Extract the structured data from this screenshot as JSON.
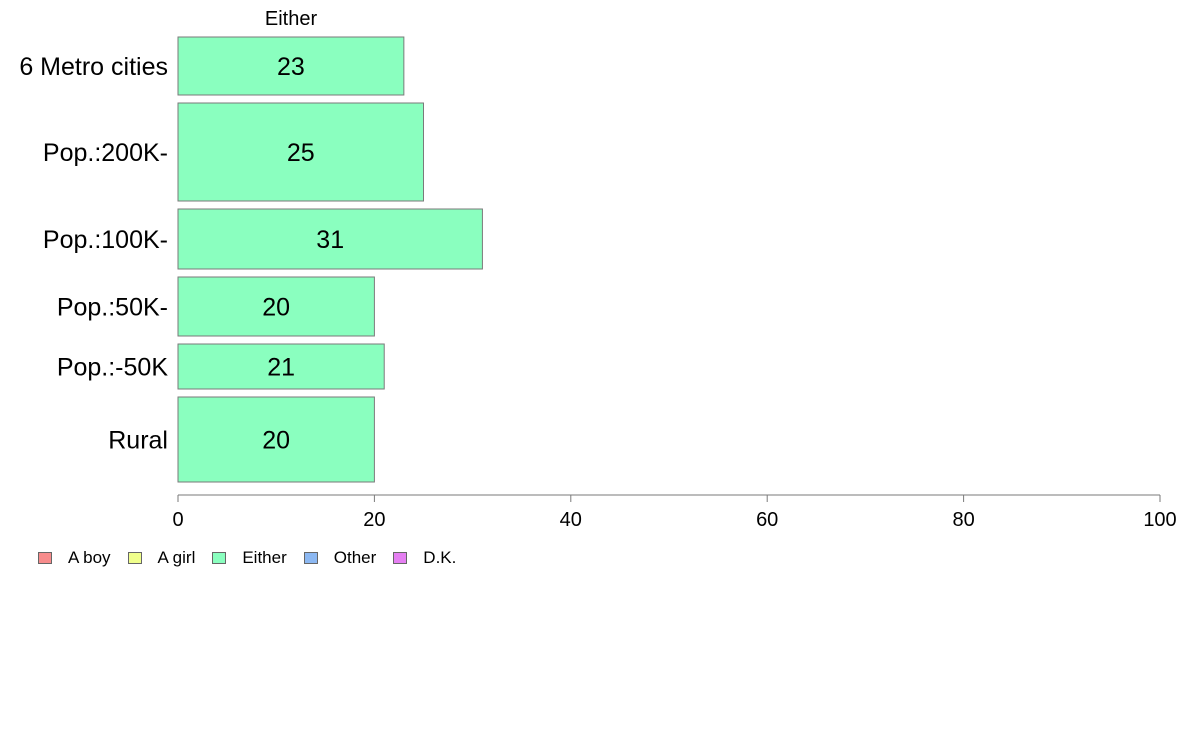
{
  "chart_data": {
    "type": "bar",
    "orientation": "horizontal",
    "title": "Either",
    "categories": [
      "6 Metro cities",
      "Pop.:200K-",
      "Pop.:100K-",
      "Pop.:50K-",
      "Pop.:-50K",
      "Rural"
    ],
    "series": [
      {
        "name": "Either",
        "values": [
          23,
          25,
          31,
          20,
          21,
          20
        ],
        "color": "#8affbf"
      }
    ],
    "data_labels": [
      "23",
      "25",
      "31",
      "20",
      "21",
      "20"
    ],
    "xlim": [
      0,
      100
    ],
    "x_ticks": [
      0,
      20,
      40,
      60,
      80,
      100
    ],
    "x_tick_labels": [
      "0",
      "20",
      "40",
      "60",
      "80",
      "100"
    ],
    "grid": false,
    "legend_position": "bottom-left",
    "legend": [
      {
        "label": "A boy",
        "color": "#f78c8c"
      },
      {
        "label": "A girl",
        "color": "#f0ff8c"
      },
      {
        "label": "Either",
        "color": "#8affbf"
      },
      {
        "label": "Other",
        "color": "#8cb8f2"
      },
      {
        "label": "D.K.",
        "color": "#e57ff2"
      }
    ]
  }
}
